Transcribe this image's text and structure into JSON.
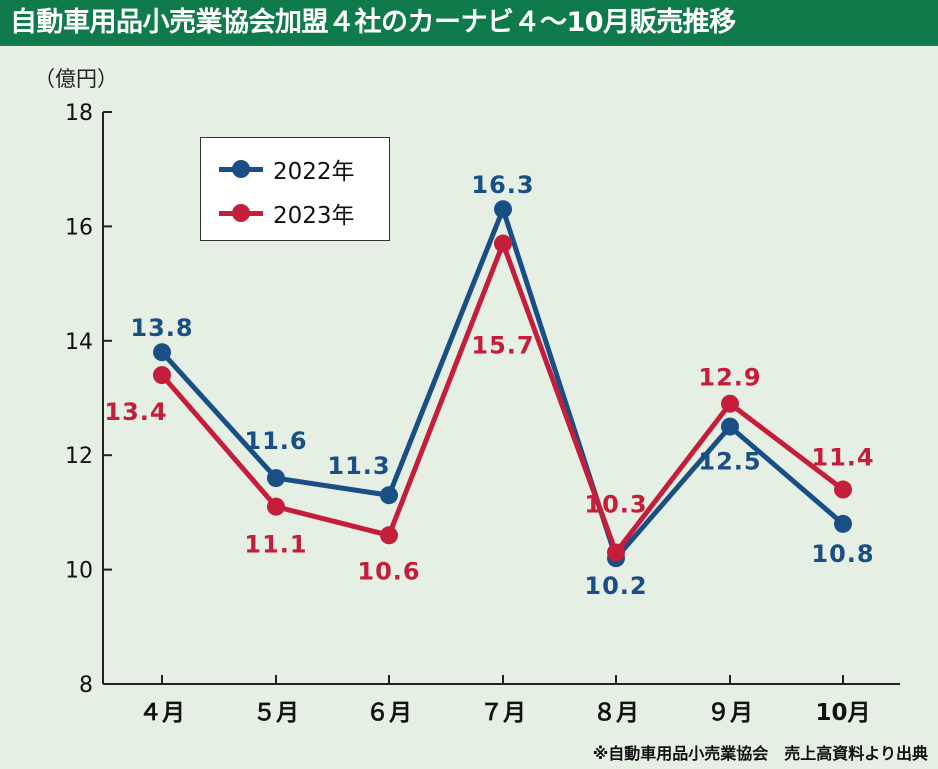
{
  "title": "自動車用品小売業協会加盟４社のカーナビ４～10月販売推移",
  "unit_label": "（億円）",
  "source_note": "※自動車用品小売業協会　売上高資料より出典",
  "colors": {
    "series_2022": "#1a4f86",
    "series_2023": "#c41e3a",
    "title_bg": "#0f7a4a",
    "background": "#e6efe4"
  },
  "chart_data": {
    "type": "line",
    "title": "自動車用品小売業協会加盟４社のカーナビ４～10月販売推移",
    "ylabel": "（億円）",
    "xlabel": "",
    "categories": [
      "４月",
      "５月",
      "６月",
      "７月",
      "８月",
      "９月",
      "10月"
    ],
    "ylim": [
      8,
      18
    ],
    "yticks": [
      8,
      10,
      12,
      14,
      16,
      18
    ],
    "grid": false,
    "legend_position": "top-left",
    "series": [
      {
        "name": "2022年",
        "values": [
          13.8,
          11.6,
          11.3,
          16.3,
          10.2,
          12.5,
          10.8
        ],
        "labels": [
          "13.8",
          "11.6",
          "11.3",
          "16.3",
          "10.2",
          "12.5",
          "10.8"
        ]
      },
      {
        "name": "2023年",
        "values": [
          13.4,
          11.1,
          10.6,
          15.7,
          10.3,
          12.9,
          11.4
        ],
        "labels": [
          "13.4",
          "11.1",
          "10.6",
          "15.7",
          "10.3",
          "12.9",
          "11.4"
        ]
      }
    ]
  }
}
